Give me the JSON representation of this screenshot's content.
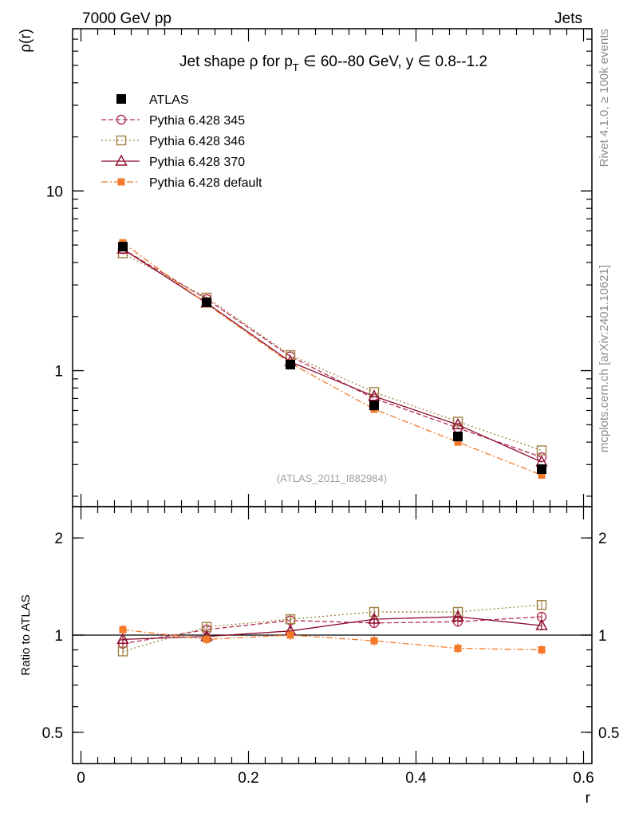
{
  "header": {
    "left": "7000 GeV pp",
    "right": "Jets"
  },
  "side_labels": {
    "rivet": "Rivet 4.1.0, ≥ 100k events",
    "mcplots": "mcplots.cern.ch [arXiv:2401.10621]"
  },
  "watermark": "(ATLAS_2011_I882984)",
  "chart_data": [
    {
      "id": "main",
      "type": "line",
      "title": "Jet shape ρ for p_T ∈ 60--80 GeV, y ∈ 0.8--1.2",
      "title_parts": {
        "prefix": "Jet shape ρ for p",
        "subscript": "T",
        "suffix": " ∈ 60--80 GeV, y ∈ 0.8--1.2"
      },
      "ylabel": "ρ(r)",
      "yscale": "log",
      "xlim": [
        -0.01,
        0.61
      ],
      "ylim": [
        0.175,
        80
      ],
      "y_tick_labels": [
        {
          "v": 1,
          "label": "1"
        },
        {
          "v": 10,
          "label": "10"
        }
      ],
      "x": [
        0.05,
        0.15,
        0.25,
        0.35,
        0.45,
        0.55
      ],
      "legend_position": "top-left",
      "series": [
        {
          "name": "ATLAS",
          "color": "#000000",
          "marker": "filled-square",
          "dash": "none",
          "is_data": true,
          "values": [
            4.9,
            2.4,
            1.08,
            0.64,
            0.43,
            0.283
          ]
        },
        {
          "name": "Pythia 6.428 345",
          "color": "#b03050",
          "marker": "open-circle",
          "dash": "6,3",
          "values": [
            4.75,
            2.5,
            1.2,
            0.7,
            0.48,
            0.33
          ]
        },
        {
          "name": "Pythia 6.428 346",
          "color": "#a08040",
          "marker": "open-square",
          "dash": "2,3",
          "values": [
            4.5,
            2.55,
            1.22,
            0.76,
            0.52,
            0.36
          ]
        },
        {
          "name": "Pythia 6.428 370",
          "color": "#8b0a2a",
          "marker": "open-triangle",
          "dash": "none",
          "values": [
            4.75,
            2.38,
            1.12,
            0.72,
            0.5,
            0.31
          ]
        },
        {
          "name": "Pythia 6.428 default",
          "color": "#f47a2a",
          "marker": "filled-small-square",
          "dash": "8,3,2,3",
          "values": [
            5.15,
            2.35,
            1.1,
            0.61,
            0.4,
            0.262
          ]
        }
      ]
    },
    {
      "id": "ratio",
      "type": "line",
      "title": "",
      "ylabel": "Ratio to ATLAS",
      "xlabel": "r",
      "yscale": "log",
      "xlim": [
        -0.01,
        0.61
      ],
      "ylim": [
        0.4,
        2.5
      ],
      "y_tick_labels": [
        {
          "v": 0.5,
          "label": "0.5"
        },
        {
          "v": 1,
          "label": "1"
        },
        {
          "v": 2,
          "label": "2"
        }
      ],
      "x_tick_labels": [
        {
          "v": 0,
          "label": "0"
        },
        {
          "v": 0.2,
          "label": "0.2"
        },
        {
          "v": 0.4,
          "label": "0.4"
        },
        {
          "v": 0.6,
          "label": "0.6"
        }
      ],
      "x": [
        0.05,
        0.15,
        0.25,
        0.35,
        0.45,
        0.55
      ],
      "reference_line": 1,
      "series": [
        {
          "name": "Pythia 6.428 345",
          "color": "#b03050",
          "marker": "open-circle",
          "dash": "6,3",
          "values": [
            0.94,
            1.04,
            1.11,
            1.09,
            1.1,
            1.14
          ]
        },
        {
          "name": "Pythia 6.428 346",
          "color": "#a08040",
          "marker": "open-square",
          "dash": "2,3",
          "values": [
            0.89,
            1.06,
            1.12,
            1.18,
            1.18,
            1.24
          ]
        },
        {
          "name": "Pythia 6.428 370",
          "color": "#8b0a2a",
          "marker": "open-triangle",
          "dash": "none",
          "values": [
            0.97,
            0.99,
            1.03,
            1.12,
            1.14,
            1.07
          ]
        },
        {
          "name": "Pythia 6.428 default",
          "color": "#f47a2a",
          "marker": "filled-small-square",
          "dash": "8,3,2,3",
          "values": [
            1.04,
            0.97,
            1.0,
            0.96,
            0.91,
            0.9
          ]
        }
      ]
    }
  ]
}
